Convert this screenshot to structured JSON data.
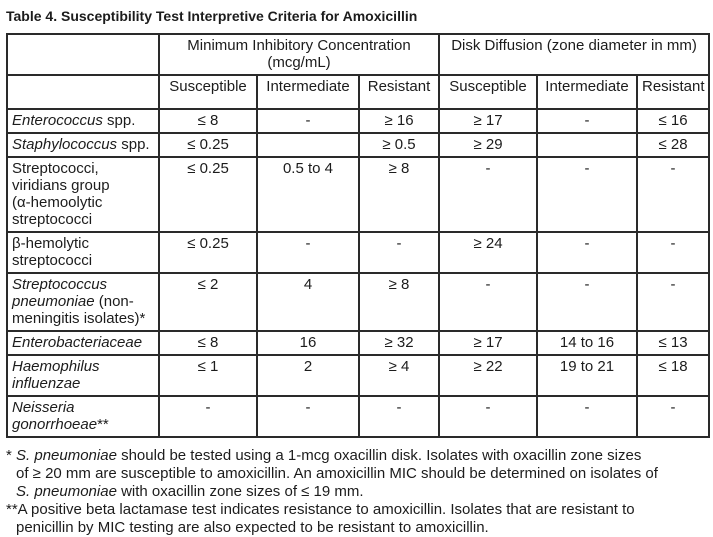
{
  "title": "Table 4. Susceptibility Test Interpretive Criteria for Amoxicillin",
  "table": {
    "group_headers": [
      "Minimum Inhibitory Concentration\n(mcg/mL)",
      "Disk Diffusion (zone diameter in mm)"
    ],
    "sub_headers": [
      "Susceptible",
      "Intermediate",
      "Resistant",
      "Susceptible",
      "Intermediate",
      "Resistant"
    ],
    "rows": [
      {
        "name": [
          {
            "t": "Enterococcus",
            "i": true
          },
          {
            "t": " spp."
          }
        ],
        "cells": [
          "≤ 8",
          "-",
          "≥ 16",
          "≥ 17",
          "-",
          "≤ 16"
        ]
      },
      {
        "name": [
          {
            "t": "Staphylococcus",
            "i": true
          },
          {
            "t": " spp."
          }
        ],
        "cells": [
          "≤ 0.25",
          "",
          "≥ 0.5",
          "≥ 29",
          "",
          "≤ 28"
        ]
      },
      {
        "name": [
          {
            "t": "Streptococci,\nviridians group\n(α-hemoolytic\nstreptococci"
          }
        ],
        "cells": [
          "≤ 0.25",
          "0.5 to 4",
          "≥ 8",
          "-",
          "-",
          "-"
        ]
      },
      {
        "name": [
          {
            "t": "β-hemolytic\nstreptococci"
          }
        ],
        "cells": [
          "≤ 0.25",
          "-",
          "-",
          "≥ 24",
          "-",
          "-"
        ]
      },
      {
        "name": [
          {
            "t": "Streptococcus\npneumoniae",
            "i": true
          },
          {
            "t": " (non-\nmeningitis isolates)*"
          }
        ],
        "cells": [
          "≤ 2",
          "4",
          "≥ 8",
          "-",
          "-",
          "-"
        ]
      },
      {
        "name": [
          {
            "t": "Enterobacteriaceae",
            "i": true
          }
        ],
        "cells": [
          "≤ 8",
          "16",
          "≥ 32",
          "≥ 17",
          "14 to 16",
          "≤ 13"
        ]
      },
      {
        "name": [
          {
            "t": "Haemophilus\ninfluenzae",
            "i": true
          }
        ],
        "cells": [
          "≤ 1",
          "2",
          "≥ 4",
          "≥ 22",
          "19 to 21",
          "≤ 18"
        ]
      },
      {
        "name": [
          {
            "t": "Neisseria\ngonorrhoeae",
            "i": true
          },
          {
            "t": "**"
          }
        ],
        "cells": [
          "-",
          "-",
          "-",
          "-",
          "-",
          "-"
        ]
      }
    ]
  },
  "footnotes": [
    [
      {
        "t": "* "
      },
      {
        "t": "S. pneumoniae",
        "i": true
      },
      {
        "t": " should be tested using a 1-mcg oxacillin disk. Isolates with oxacillin zone sizes\nof ≥ 20 mm are susceptible to amoxicillin. An amoxicillin MIC should be determined on isolates of\n"
      },
      {
        "t": "S. pneumoniae",
        "i": true
      },
      {
        "t": " with oxacillin zone sizes of ≤ 19 mm."
      }
    ],
    [
      {
        "t": "**A positive beta lactamase test indicates resistance to amoxicillin. Isolates that are resistant to\npenicillin by MIC testing are also expected to be resistant to amoxicillin."
      }
    ]
  ],
  "colors": {
    "text": "#1c1c1c",
    "border": "#2a2a2a",
    "background": "#ffffff"
  }
}
